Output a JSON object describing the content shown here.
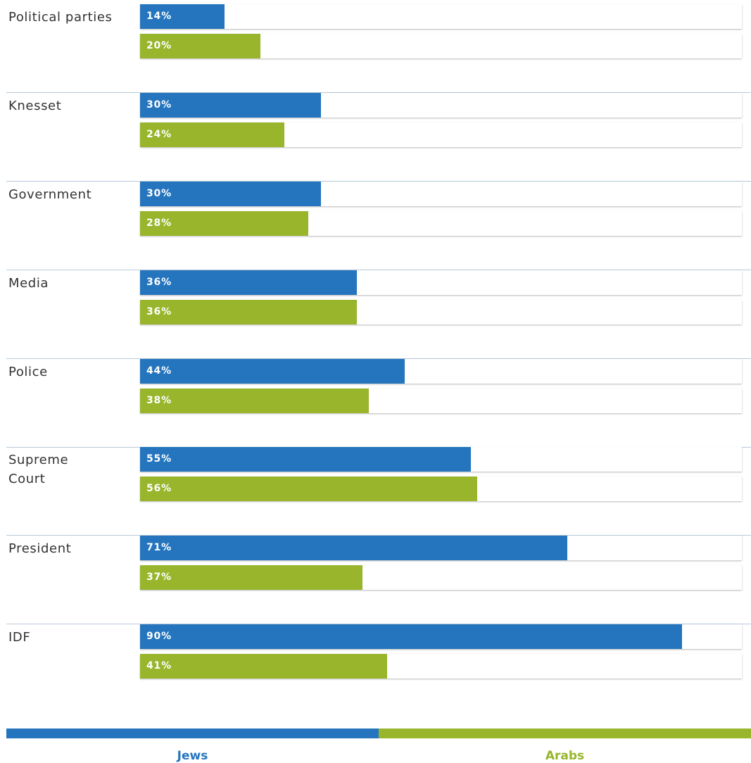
{
  "chart_data": {
    "type": "bar",
    "orientation": "horizontal",
    "categories": [
      "Political parties",
      "Knesset",
      "Government",
      "Media",
      "Police",
      "Supreme Court",
      "President",
      "IDF"
    ],
    "category_lines": [
      [
        "Political parties"
      ],
      [
        "Knesset"
      ],
      [
        "Government"
      ],
      [
        "Media"
      ],
      [
        "Police"
      ],
      [
        "Supreme",
        "Court"
      ],
      [
        "President"
      ],
      [
        "IDF"
      ]
    ],
    "series": [
      {
        "name": "Jews",
        "color": "#2475be",
        "values": [
          14,
          30,
          30,
          36,
          44,
          55,
          71,
          90
        ],
        "labels": [
          "14%",
          "30%",
          "30%",
          "36%",
          "44%",
          "55%",
          "71%",
          "90%"
        ]
      },
      {
        "name": "Arabs",
        "color": "#98b52b",
        "values": [
          20,
          24,
          28,
          36,
          38,
          56,
          37,
          41
        ],
        "labels": [
          "20%",
          "24%",
          "28%",
          "36%",
          "38%",
          "56%",
          "37%",
          "41%"
        ]
      }
    ],
    "xlim": [
      0,
      100
    ],
    "legend_position": "bottom",
    "grid": false
  },
  "colors": {
    "jews": "#2475be",
    "arabs": "#98b52b",
    "label_text": "#333333",
    "divider": "#b9cad8"
  }
}
